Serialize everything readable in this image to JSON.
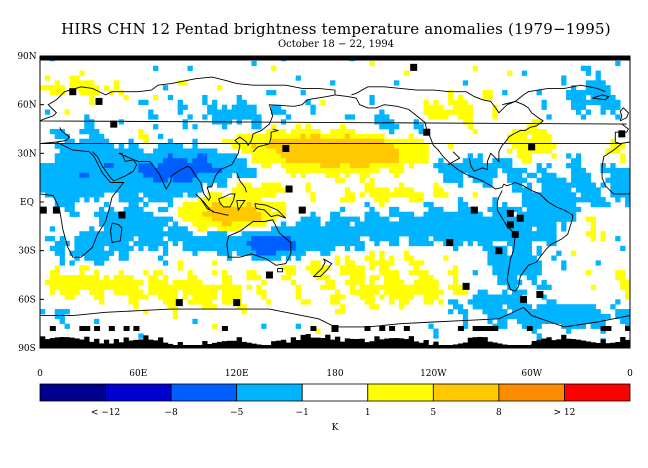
{
  "title": "HIRS CHN 12 Pentad brightness temperature anomalies (1979−1995)",
  "subtitle": "October 18 − 22, 1994",
  "axes": {
    "lat_labels": [
      {
        "text": "90N",
        "lat": 90
      },
      {
        "text": "60N",
        "lat": 60
      },
      {
        "text": "30N",
        "lat": 30
      },
      {
        "text": "EQ",
        "lat": 0
      },
      {
        "text": "30S",
        "lat": -30
      },
      {
        "text": "60S",
        "lat": -60
      },
      {
        "text": "90S",
        "lat": -90
      }
    ],
    "lon_labels": [
      {
        "text": "0",
        "lon": 0
      },
      {
        "text": "60E",
        "lon": 60
      },
      {
        "text": "120E",
        "lon": 120
      },
      {
        "text": "180",
        "lon": 180
      },
      {
        "text": "120W",
        "lon": 240
      },
      {
        "text": "60W",
        "lon": 300
      },
      {
        "text": "0",
        "lon": 360
      }
    ]
  },
  "colorbar": {
    "colors": [
      "#00008f",
      "#0000d0",
      "#0060ff",
      "#00b4ff",
      "#ffffff",
      "#ffff00",
      "#ffc800",
      "#ff8c00",
      "#ff0000"
    ],
    "labels": [
      "< −12",
      "−8",
      "−5",
      "−1",
      "1",
      "5",
      "8",
      "> 12"
    ],
    "unit": "K"
  },
  "map_colors": {
    "missing": "#000000",
    "coast": "#000000"
  }
}
